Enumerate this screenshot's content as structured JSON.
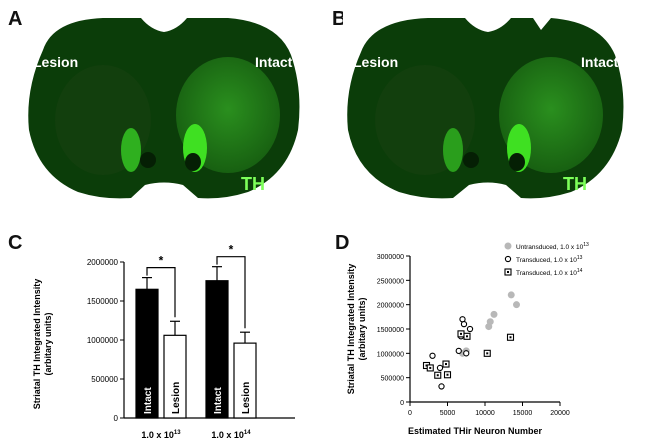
{
  "panels": {
    "a": {
      "letter": "A",
      "left_label": "Lesion",
      "right_label": "Intact",
      "marker": "TH"
    },
    "b": {
      "letter": "B",
      "left_label": "Lesion",
      "right_label": "Intact",
      "marker": "TH"
    },
    "c": {
      "letter": "C"
    },
    "d": {
      "letter": "D"
    }
  },
  "colors": {
    "tissue": "#0b3d09",
    "striatum": "#1f7a17",
    "bright": "#3fe022",
    "th": "#7dff5a"
  },
  "chart_data": [
    {
      "panel": "C",
      "type": "bar",
      "ylabel_line1": "Striatal TH Integrated Intensity",
      "ylabel_line2": "(arbitary units)",
      "ylim": [
        0,
        2000000
      ],
      "yticks": [
        "0",
        "500000",
        "1000000",
        "1500000",
        "2000000"
      ],
      "groups": [
        {
          "label_base": "1.0 x 10",
          "label_exp": "13",
          "bars": [
            {
              "name": "Intact",
              "value": 1650000,
              "error": 150000,
              "fill": "#000000"
            },
            {
              "name": "Lesion",
              "value": 1060000,
              "error": 180000,
              "fill": "#ffffff"
            }
          ],
          "significance": "*"
        },
        {
          "label_base": "1.0 x 10",
          "label_exp": "14",
          "bars": [
            {
              "name": "Intact",
              "value": 1760000,
              "error": 180000,
              "fill": "#000000"
            },
            {
              "name": "Lesion",
              "value": 960000,
              "error": 140000,
              "fill": "#ffffff"
            }
          ],
          "significance": "*"
        }
      ]
    },
    {
      "panel": "D",
      "type": "scatter",
      "xlabel": "Estimated THir Neuron Number",
      "ylabel_line1": "Striatal TH Integrated Intensity",
      "ylabel_line2": "(arbitary units)",
      "xlim": [
        0,
        20000
      ],
      "ylim": [
        0,
        3000000
      ],
      "xticks": [
        "0",
        "5000",
        "10000",
        "15000",
        "20000"
      ],
      "yticks": [
        "0",
        "500000",
        "1000000",
        "1500000",
        "2000000",
        "2500000",
        "3000000"
      ],
      "series": [
        {
          "name_base": "Untransduced, 1.0 x 10",
          "name_exp": "13",
          "marker": "filled-circle",
          "color": "#b8b8b8",
          "points": [
            [
              7000,
              1000000
            ],
            [
              7500,
              1050000
            ],
            [
              10500,
              1550000
            ],
            [
              10700,
              1650000
            ],
            [
              11200,
              1800000
            ],
            [
              13500,
              2200000
            ],
            [
              14200,
              2000000
            ]
          ]
        },
        {
          "name_base": "Transduced, 1.0 x 10",
          "name_exp": "13",
          "marker": "open-circle",
          "color": "#000000",
          "points": [
            [
              3000,
              950000
            ],
            [
              4000,
              700000
            ],
            [
              4200,
              320000
            ],
            [
              6500,
              1050000
            ],
            [
              6800,
              1350000
            ],
            [
              7000,
              1700000
            ],
            [
              7200,
              1600000
            ],
            [
              7500,
              1000000
            ],
            [
              8000,
              1500000
            ]
          ]
        },
        {
          "name_base": "Transduced, 1.0 x 10",
          "name_exp": "14",
          "marker": "open-square",
          "color": "#000000",
          "points": [
            [
              2200,
              750000
            ],
            [
              2700,
              700000
            ],
            [
              3700,
              550000
            ],
            [
              4800,
              780000
            ],
            [
              5000,
              560000
            ],
            [
              6800,
              1400000
            ],
            [
              7600,
              1350000
            ],
            [
              10300,
              1000000
            ],
            [
              13400,
              1330000
            ]
          ]
        }
      ]
    }
  ]
}
